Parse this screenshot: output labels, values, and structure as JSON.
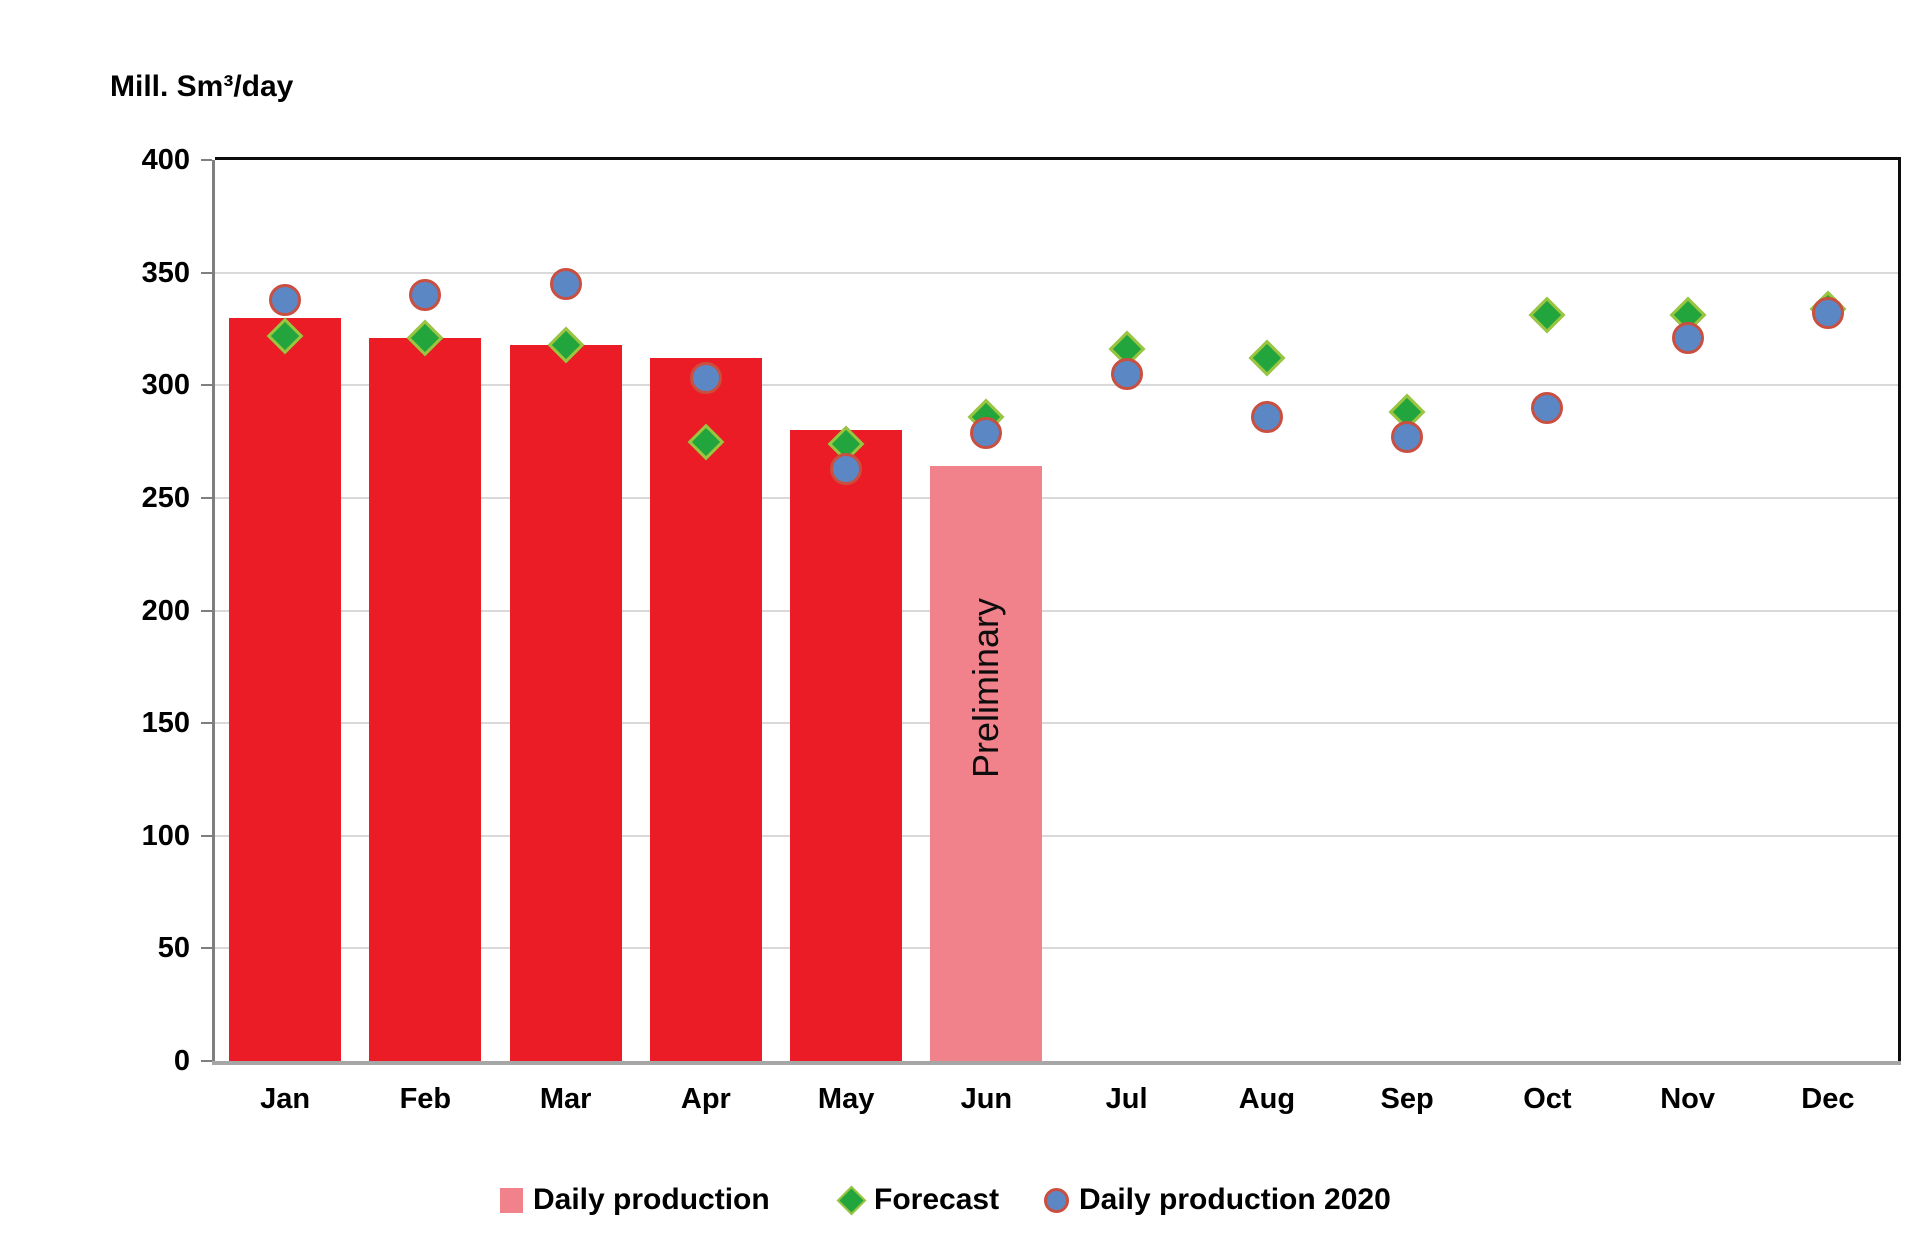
{
  "chart_data": {
    "type": "bar",
    "title": "Mill. Sm³/day",
    "categories": [
      "Jan",
      "Feb",
      "Mar",
      "Apr",
      "May",
      "Jun",
      "Jul",
      "Aug",
      "Sep",
      "Oct",
      "Nov",
      "Dec"
    ],
    "series": [
      {
        "name": "Daily production",
        "type": "bar",
        "values": [
          330,
          321,
          318,
          312,
          280,
          264,
          null,
          null,
          null,
          null,
          null,
          null
        ],
        "preliminary_index": 5,
        "preliminary_label": "Preliminary"
      },
      {
        "name": "Forecast",
        "type": "scatter-diamond",
        "values": [
          322,
          321,
          318,
          275,
          274,
          286,
          316,
          312,
          288,
          331,
          331,
          334
        ]
      },
      {
        "name": "Daily production 2020",
        "type": "scatter-circle",
        "values": [
          338,
          340,
          345,
          303,
          263,
          279,
          305,
          286,
          277,
          290,
          321,
          332
        ]
      }
    ],
    "ylim": [
      0,
      400
    ],
    "ytick_step": 50,
    "grid": true,
    "legend_position": "bottom"
  },
  "colors": {
    "bar_red": "#ec1c26",
    "bar_preliminary_pink": "#f1818a",
    "forecast_fill": "#22a53c",
    "forecast_border": "#9dc43f",
    "prod2020_fill": "#5b87c5",
    "prod2020_border": "#c94f41",
    "gridline": "#d9d9d9",
    "axis_gray": "#7f7f7f",
    "text": "#000000"
  }
}
